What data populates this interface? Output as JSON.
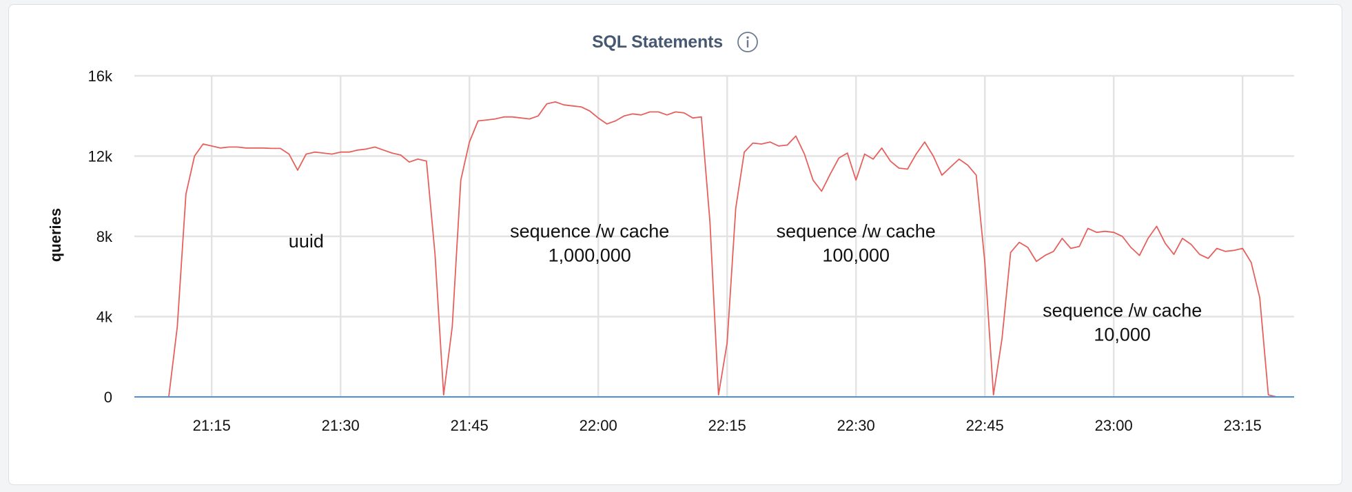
{
  "chart_data": {
    "type": "line",
    "title": "SQL Statements",
    "ylabel": "queries",
    "xlabel": "",
    "ylim": [
      0,
      16000
    ],
    "xlim": [
      "21:06",
      "23:21"
    ],
    "y_ticks": [
      0,
      4000,
      8000,
      12000,
      16000
    ],
    "y_tick_labels": [
      "0",
      "4k",
      "8k",
      "12k",
      "16k"
    ],
    "x_ticks": [
      "21:15",
      "21:30",
      "21:45",
      "22:00",
      "22:15",
      "22:30",
      "22:45",
      "23:00",
      "23:15"
    ],
    "grid": true,
    "legend": "none",
    "series": [
      {
        "color": "#e5605d",
        "x": [
          "21:10",
          "21:11",
          "21:12",
          "21:13",
          "21:14",
          "21:15",
          "21:16",
          "21:17",
          "21:18",
          "21:19",
          "21:20",
          "21:21",
          "21:22",
          "21:23",
          "21:24",
          "21:25",
          "21:26",
          "21:27",
          "21:28",
          "21:29",
          "21:30",
          "21:31",
          "21:32",
          "21:33",
          "21:34",
          "21:35",
          "21:36",
          "21:37",
          "21:38",
          "21:39",
          "21:40",
          "21:41",
          "21:42",
          "21:43",
          "21:44",
          "21:45",
          "21:46",
          "21:47",
          "21:48",
          "21:49",
          "21:50",
          "21:51",
          "21:52",
          "21:53",
          "21:54",
          "21:55",
          "21:56",
          "21:57",
          "21:58",
          "21:59",
          "22:00",
          "22:01",
          "22:02",
          "22:03",
          "22:04",
          "22:05",
          "22:06",
          "22:07",
          "22:08",
          "22:09",
          "22:10",
          "22:11",
          "22:12",
          "22:13",
          "22:14",
          "22:15",
          "22:16",
          "22:17",
          "22:18",
          "22:19",
          "22:20",
          "22:21",
          "22:22",
          "22:23",
          "22:24",
          "22:25",
          "22:26",
          "22:27",
          "22:28",
          "22:29",
          "22:30",
          "22:31",
          "22:32",
          "22:33",
          "22:34",
          "22:35",
          "22:36",
          "22:37",
          "22:38",
          "22:39",
          "22:40",
          "22:41",
          "22:42",
          "22:43",
          "22:44",
          "22:45",
          "22:46",
          "22:47",
          "22:48",
          "22:49",
          "22:50",
          "22:51",
          "22:52",
          "22:53",
          "22:54",
          "22:55",
          "22:56",
          "22:57",
          "22:58",
          "22:59",
          "23:00",
          "23:01",
          "23:02",
          "23:03",
          "23:04",
          "23:05",
          "23:06",
          "23:07",
          "23:08",
          "23:09",
          "23:10",
          "23:11",
          "23:12",
          "23:13",
          "23:14",
          "23:15",
          "23:16",
          "23:17",
          "23:18",
          "23:19"
        ],
        "y": [
          0,
          3500,
          10100,
          12000,
          12600,
          12500,
          12400,
          12450,
          12450,
          12400,
          12400,
          12400,
          12380,
          12380,
          12100,
          11300,
          12100,
          12200,
          12150,
          12100,
          12200,
          12200,
          12300,
          12350,
          12450,
          12300,
          12150,
          12050,
          11700,
          11850,
          11750,
          7100,
          100,
          3500,
          10800,
          12700,
          13750,
          13800,
          13850,
          13950,
          13950,
          13900,
          13850,
          14000,
          14600,
          14700,
          14550,
          14500,
          14450,
          14250,
          13900,
          13600,
          13750,
          14000,
          14100,
          14050,
          14200,
          14200,
          14050,
          14200,
          14150,
          13900,
          13950,
          8700,
          100,
          2700,
          9400,
          12200,
          12650,
          12600,
          12700,
          12500,
          12550,
          13000,
          12100,
          10800,
          10250,
          11100,
          11900,
          12150,
          10800,
          12100,
          11850,
          12400,
          11750,
          11400,
          11350,
          12100,
          12700,
          12000,
          11050,
          11450,
          11850,
          11550,
          11050,
          6700,
          100,
          2900,
          7200,
          7700,
          7450,
          6750,
          7050,
          7250,
          7900,
          7400,
          7500,
          8400,
          8200,
          8250,
          8200,
          8000,
          7450,
          7050,
          7900,
          8500,
          7650,
          7100,
          7900,
          7600,
          7100,
          6900,
          7400,
          7250,
          7300,
          7400,
          6700,
          4950,
          100,
          0
        ]
      },
      {
        "color": "#4a90d9",
        "x": [
          "21:06",
          "23:21"
        ],
        "y": [
          0,
          0
        ]
      }
    ],
    "annotations": [
      {
        "lines": [
          "uuid"
        ],
        "x": "21:26",
        "y": 7450
      },
      {
        "lines": [
          "sequence /w cache",
          "1,000,000"
        ],
        "x": "21:59",
        "y": 7950
      },
      {
        "lines": [
          "sequence /w cache",
          "100,000"
        ],
        "x": "22:30",
        "y": 7950
      },
      {
        "lines": [
          "sequence /w cache",
          "10,000"
        ],
        "x": "23:01",
        "y": 4000
      }
    ]
  }
}
